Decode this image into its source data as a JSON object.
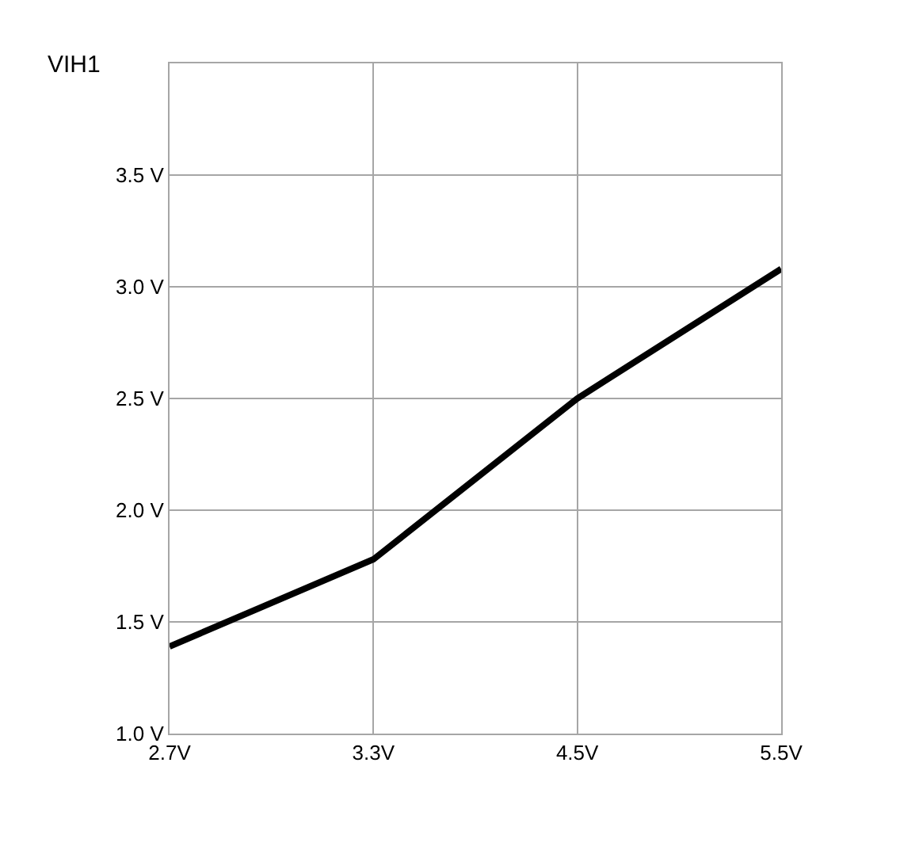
{
  "chart_data": {
    "type": "line",
    "title": "VIH1",
    "categories": [
      "2.7V",
      "3.3V",
      "4.5V",
      "5.5V"
    ],
    "series": [
      {
        "color": "#000000",
        "values": [
          1.39,
          1.78,
          2.5,
          3.08
        ]
      }
    ],
    "ylim": [
      1.0,
      4.0
    ],
    "yticks": [
      {
        "value": 1.0,
        "label": "1.0 V"
      },
      {
        "value": 1.5,
        "label": "1.5 V"
      },
      {
        "value": 2.0,
        "label": "2.0 V"
      },
      {
        "value": 2.5,
        "label": "2.5 V"
      },
      {
        "value": 3.0,
        "label": "3.0 V"
      },
      {
        "value": 3.5,
        "label": "3.5 V"
      },
      {
        "value": 4.0,
        "label": null
      }
    ],
    "grid": true,
    "legend": false,
    "marker": "none",
    "line_style": "solid"
  }
}
